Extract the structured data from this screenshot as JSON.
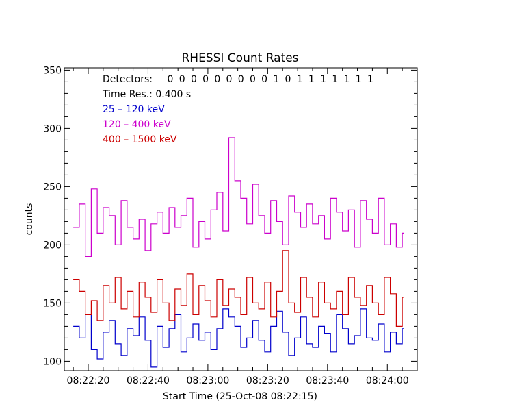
{
  "chart_data": {
    "type": "line",
    "title": "RHESSI Count Rates",
    "xlabel": "Start Time (25-Oct-08 08:22:15)",
    "ylabel": "counts",
    "xlim": [
      "08:22:12",
      "08:24:10"
    ],
    "ylim": [
      92,
      352
    ],
    "x_ticks": [
      "08:22:20",
      "08:22:40",
      "08:23:00",
      "08:23:20",
      "08:23:40",
      "08:24:00"
    ],
    "y_ticks": [
      100,
      150,
      200,
      250,
      300,
      350
    ],
    "annotations": {
      "detectors_label": "Detectors:",
      "detectors": [
        "0",
        "0",
        "0",
        "0",
        "0",
        "0",
        "0",
        "0",
        "0",
        "1",
        "0",
        "1",
        "1",
        "1",
        "1",
        "1",
        "1",
        "1"
      ],
      "time_res": "Time Res.: 0.400 s"
    },
    "grid": false,
    "series": [
      {
        "name": "25 – 120 keV",
        "color": "#0000cc",
        "x": [
          "08:22:15",
          "08:22:17",
          "08:22:19",
          "08:22:21",
          "08:22:23",
          "08:22:25",
          "08:22:27",
          "08:22:29",
          "08:22:31",
          "08:22:33",
          "08:22:35",
          "08:22:37",
          "08:22:39",
          "08:22:41",
          "08:22:43",
          "08:22:45",
          "08:22:47",
          "08:22:49",
          "08:22:51",
          "08:22:53",
          "08:22:55",
          "08:22:57",
          "08:22:59",
          "08:23:01",
          "08:23:03",
          "08:23:05",
          "08:23:07",
          "08:23:09",
          "08:23:11",
          "08:23:13",
          "08:23:15",
          "08:23:17",
          "08:23:19",
          "08:23:21",
          "08:23:23",
          "08:23:25",
          "08:23:27",
          "08:23:29",
          "08:23:31",
          "08:23:33",
          "08:23:35",
          "08:23:37",
          "08:23:39",
          "08:23:41",
          "08:23:43",
          "08:23:45",
          "08:23:47",
          "08:23:49",
          "08:23:51",
          "08:23:53",
          "08:23:55",
          "08:23:57",
          "08:23:59",
          "08:24:01",
          "08:24:03",
          "08:24:05"
        ],
        "values": [
          130,
          120,
          140,
          110,
          102,
          125,
          135,
          115,
          105,
          128,
          122,
          138,
          118,
          95,
          130,
          112,
          128,
          140,
          108,
          120,
          132,
          118,
          125,
          110,
          128,
          145,
          138,
          130,
          112,
          120,
          135,
          118,
          108,
          130,
          143,
          125,
          105,
          120,
          138,
          115,
          112,
          130,
          124,
          108,
          140,
          128,
          115,
          122,
          145,
          120,
          118,
          132,
          108,
          125,
          115,
          128
        ]
      },
      {
        "name": "120 – 400 keV",
        "color": "#cc00cc",
        "x": [
          "08:22:15",
          "08:22:17",
          "08:22:19",
          "08:22:21",
          "08:22:23",
          "08:22:25",
          "08:22:27",
          "08:22:29",
          "08:22:31",
          "08:22:33",
          "08:22:35",
          "08:22:37",
          "08:22:39",
          "08:22:41",
          "08:22:43",
          "08:22:45",
          "08:22:47",
          "08:22:49",
          "08:22:51",
          "08:22:53",
          "08:22:55",
          "08:22:57",
          "08:22:59",
          "08:23:01",
          "08:23:03",
          "08:23:05",
          "08:23:07",
          "08:23:09",
          "08:23:11",
          "08:23:13",
          "08:23:15",
          "08:23:17",
          "08:23:19",
          "08:23:21",
          "08:23:23",
          "08:23:25",
          "08:23:27",
          "08:23:29",
          "08:23:31",
          "08:23:33",
          "08:23:35",
          "08:23:37",
          "08:23:39",
          "08:23:41",
          "08:23:43",
          "08:23:45",
          "08:23:47",
          "08:23:49",
          "08:23:51",
          "08:23:53",
          "08:23:55",
          "08:23:57",
          "08:23:59",
          "08:24:01",
          "08:24:03",
          "08:24:05"
        ],
        "values": [
          215,
          235,
          190,
          248,
          210,
          232,
          225,
          200,
          238,
          215,
          205,
          222,
          195,
          218,
          228,
          210,
          232,
          215,
          225,
          240,
          198,
          220,
          205,
          230,
          245,
          212,
          292,
          255,
          240,
          218,
          252,
          225,
          210,
          238,
          220,
          200,
          242,
          228,
          215,
          235,
          218,
          225,
          205,
          240,
          228,
          212,
          230,
          198,
          238,
          222,
          210,
          240,
          200,
          218,
          198,
          210
        ]
      },
      {
        "name": "400 – 1500 keV",
        "color": "#cc0000",
        "x": [
          "08:22:15",
          "08:22:17",
          "08:22:19",
          "08:22:21",
          "08:22:23",
          "08:22:25",
          "08:22:27",
          "08:22:29",
          "08:22:31",
          "08:22:33",
          "08:22:35",
          "08:22:37",
          "08:22:39",
          "08:22:41",
          "08:22:43",
          "08:22:45",
          "08:22:47",
          "08:22:49",
          "08:22:51",
          "08:22:53",
          "08:22:55",
          "08:22:57",
          "08:22:59",
          "08:23:01",
          "08:23:03",
          "08:23:05",
          "08:23:07",
          "08:23:09",
          "08:23:11",
          "08:23:13",
          "08:23:15",
          "08:23:17",
          "08:23:19",
          "08:23:21",
          "08:23:23",
          "08:23:25",
          "08:23:27",
          "08:23:29",
          "08:23:31",
          "08:23:33",
          "08:23:35",
          "08:23:37",
          "08:23:39",
          "08:23:41",
          "08:23:43",
          "08:23:45",
          "08:23:47",
          "08:23:49",
          "08:23:51",
          "08:23:53",
          "08:23:55",
          "08:23:57",
          "08:23:59",
          "08:24:01",
          "08:24:03",
          "08:24:05"
        ],
        "values": [
          170,
          160,
          140,
          152,
          135,
          165,
          150,
          172,
          145,
          160,
          138,
          168,
          155,
          142,
          170,
          150,
          135,
          162,
          148,
          175,
          140,
          165,
          152,
          138,
          170,
          148,
          162,
          155,
          140,
          172,
          150,
          145,
          168,
          138,
          160,
          195,
          150,
          142,
          172,
          155,
          138,
          168,
          150,
          145,
          160,
          140,
          172,
          155,
          148,
          165,
          150,
          140,
          172,
          158,
          130,
          155
        ]
      }
    ]
  }
}
